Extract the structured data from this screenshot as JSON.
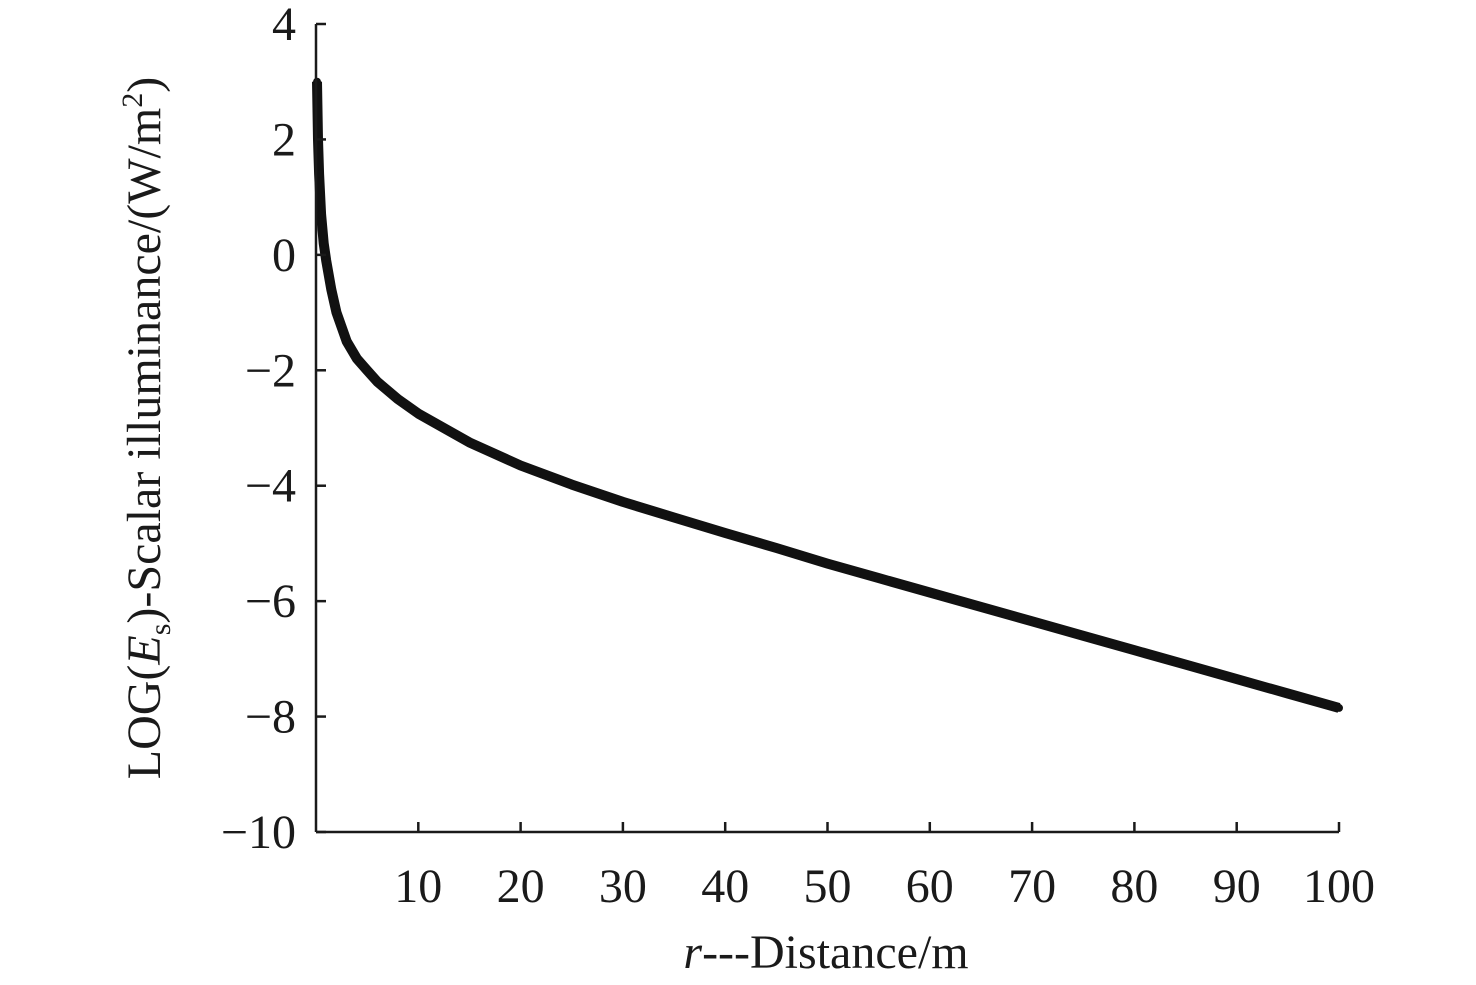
{
  "chart_data": {
    "type": "line",
    "title": "",
    "xlabel": {
      "italic": "r",
      "text": "---Distance/m"
    },
    "ylabel": {
      "prefix": "LOG(",
      "symbol": "E",
      "subscript": "s",
      "middle": ")-Scalar illuminance/(W/m",
      "superscript": "2",
      "suffix": ")"
    },
    "xlim": [
      0,
      100
    ],
    "ylim": [
      -10,
      4
    ],
    "xticks": [
      10,
      20,
      30,
      40,
      50,
      60,
      70,
      80,
      90,
      100
    ],
    "xtick_labels": [
      "10",
      "20",
      "30",
      "40",
      "50",
      "60",
      "70",
      "80",
      "90",
      "100"
    ],
    "yticks": [
      4,
      2,
      0,
      -2,
      -4,
      -6,
      -8,
      -10
    ],
    "ytick_labels": [
      "4",
      "2",
      "0",
      "−2",
      "−4",
      "−6",
      "−8",
      "−10"
    ],
    "grid": false,
    "legend": "none",
    "series": [
      {
        "color": "#111111",
        "x": [
          0.1,
          0.2,
          0.3,
          0.5,
          0.75,
          1,
          1.5,
          2,
          3,
          4,
          5,
          6,
          8,
          10,
          15,
          20,
          25,
          30,
          35,
          40,
          45,
          50,
          55,
          60,
          65,
          70,
          75,
          80,
          85,
          90,
          95,
          100
        ],
        "y": [
          3.0,
          2.0,
          1.4,
          0.7,
          0.2,
          -0.1,
          -0.6,
          -1.0,
          -1.5,
          -1.8,
          -2.0,
          -2.2,
          -2.5,
          -2.75,
          -3.25,
          -3.65,
          -3.98,
          -4.28,
          -4.55,
          -4.82,
          -5.08,
          -5.35,
          -5.6,
          -5.85,
          -6.1,
          -6.35,
          -6.6,
          -6.85,
          -7.1,
          -7.35,
          -7.6,
          -7.85
        ]
      }
    ]
  }
}
